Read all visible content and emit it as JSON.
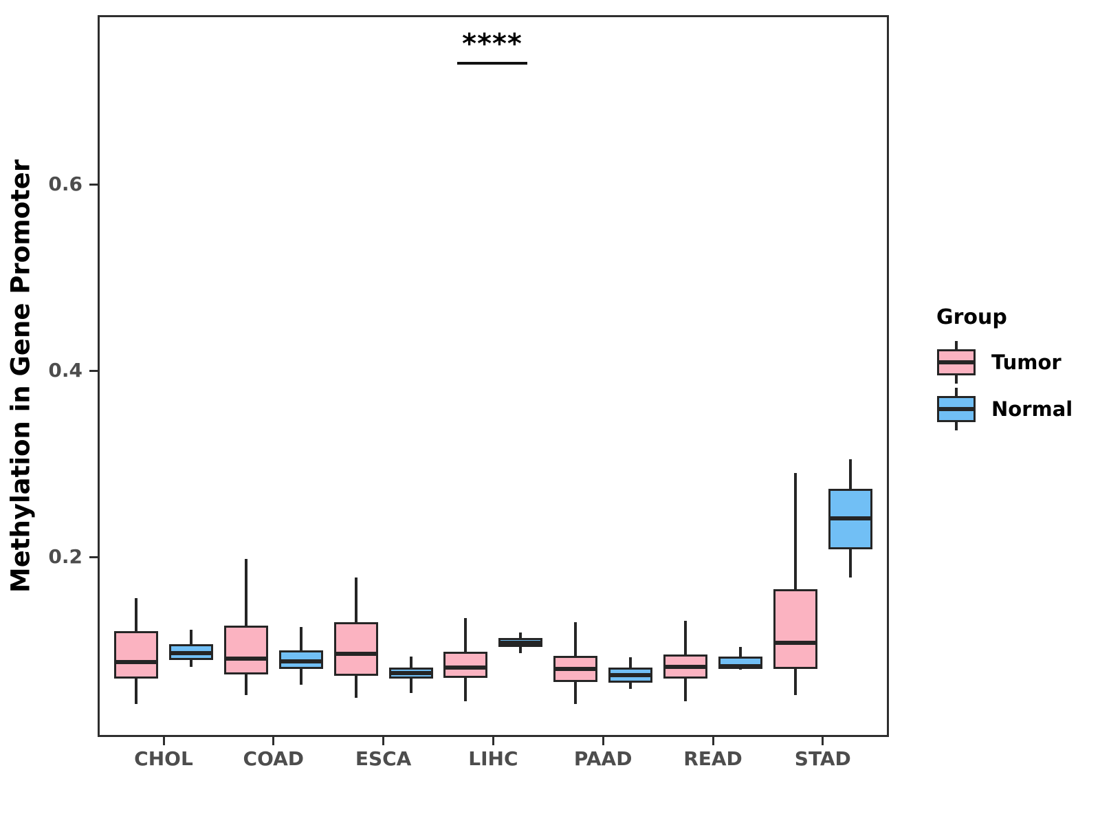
{
  "figure": {
    "background": "#FFFFFF"
  },
  "chart_data": {
    "type": "grouped_boxplot",
    "title": "",
    "xlabel": "",
    "ylabel": "Methylation in Gene Promoter",
    "categories": [
      "CHOL",
      "COAD",
      "ESCA",
      "LIHC",
      "PAAD",
      "READ",
      "STAD"
    ],
    "groups": [
      "Tumor",
      "Normal"
    ],
    "colors": {
      "tumor_fill": "#FBB3C1",
      "normal_fill": "#71BFF5",
      "stroke": "#252525",
      "tick_text": "#4d4d4d"
    },
    "y_axis": {
      "ticks": [
        0.2,
        0.4,
        0.6
      ],
      "tick_labels": [
        "0.2",
        "0.4",
        "0.6"
      ],
      "range": [
        0.007,
        0.782
      ],
      "grid": false
    },
    "legend_position": "right",
    "annotation": {
      "label": "****",
      "category": "LIHC",
      "bar_y": 0.73,
      "meaning": "significance bracket between LIHC Tumor and Normal"
    },
    "series": [
      {
        "name": "Tumor",
        "boxes": [
          {
            "category": "CHOL",
            "min": 0.042,
            "q1": 0.069,
            "median": 0.087,
            "q3": 0.12,
            "max": 0.156
          },
          {
            "category": "COAD",
            "min": 0.052,
            "q1": 0.074,
            "median": 0.091,
            "q3": 0.126,
            "max": 0.198
          },
          {
            "category": "ESCA",
            "min": 0.049,
            "q1": 0.072,
            "median": 0.096,
            "q3": 0.13,
            "max": 0.178
          },
          {
            "category": "LIHC",
            "min": 0.045,
            "q1": 0.07,
            "median": 0.081,
            "q3": 0.098,
            "max": 0.134
          },
          {
            "category": "PAAD",
            "min": 0.042,
            "q1": 0.066,
            "median": 0.08,
            "q3": 0.094,
            "max": 0.13
          },
          {
            "category": "READ",
            "min": 0.045,
            "q1": 0.069,
            "median": 0.082,
            "q3": 0.095,
            "max": 0.131
          },
          {
            "category": "STAD",
            "min": 0.052,
            "q1": 0.08,
            "median": 0.108,
            "q3": 0.165,
            "max": 0.29
          }
        ]
      },
      {
        "name": "Normal",
        "boxes": [
          {
            "category": "CHOL",
            "min": 0.082,
            "q1": 0.089,
            "median": 0.097,
            "q3": 0.106,
            "max": 0.122
          },
          {
            "category": "COAD",
            "min": 0.063,
            "q1": 0.08,
            "median": 0.088,
            "q3": 0.1,
            "max": 0.125
          },
          {
            "category": "ESCA",
            "min": 0.054,
            "q1": 0.069,
            "median": 0.075,
            "q3": 0.081,
            "max": 0.093
          },
          {
            "category": "LIHC",
            "min": 0.097,
            "q1": 0.103,
            "median": 0.108,
            "q3": 0.113,
            "max": 0.119
          },
          {
            "category": "PAAD",
            "min": 0.058,
            "q1": 0.065,
            "median": 0.073,
            "q3": 0.081,
            "max": 0.092
          },
          {
            "category": "READ",
            "min": 0.079,
            "q1": 0.08,
            "median": 0.083,
            "q3": 0.093,
            "max": 0.103
          },
          {
            "category": "STAD",
            "min": 0.178,
            "q1": 0.208,
            "median": 0.241,
            "q3": 0.273,
            "max": 0.305
          }
        ]
      }
    ]
  },
  "legend": {
    "title": "Group",
    "items": [
      {
        "label": "Tumor",
        "color": "#FBB3C1"
      },
      {
        "label": "Normal",
        "color": "#71BFF5"
      }
    ]
  }
}
